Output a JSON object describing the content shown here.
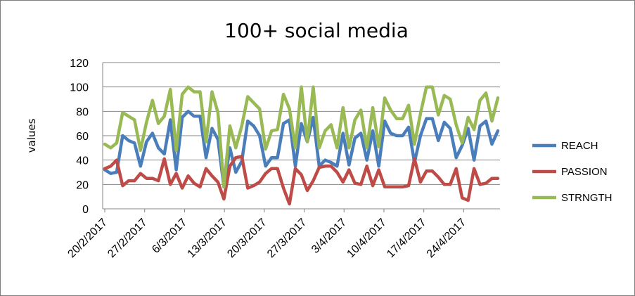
{
  "chart_data": {
    "type": "line",
    "title": "100+ social media",
    "ylabel": "values",
    "xlabel": "",
    "ylim": [
      0,
      120
    ],
    "yticks": [
      0,
      20,
      40,
      60,
      80,
      100,
      120
    ],
    "grid": "horizontal",
    "legend_position": "right",
    "x_tick_labels": [
      "20/2/2017",
      "27/2/2017",
      "6/3/2017",
      "13/3/2017",
      "20/3/2017",
      "27/3/2017",
      "3/4/2017",
      "10/4/2017",
      "17/4/2017",
      "24/4/2017"
    ],
    "x_start": "20/2/2017",
    "x_end": "30/4/2017",
    "series": [
      {
        "name": "REACH",
        "color": "#4a7ebb",
        "values": [
          32,
          29,
          30,
          60,
          56,
          54,
          35,
          55,
          62,
          50,
          45,
          73,
          32,
          75,
          80,
          76,
          76,
          42,
          66,
          57,
          18,
          50,
          30,
          39,
          72,
          68,
          60,
          35,
          42,
          42,
          70,
          73,
          35,
          70,
          55,
          75,
          35,
          40,
          38,
          35,
          62,
          36,
          58,
          62,
          40,
          64,
          35,
          72,
          62,
          60,
          60,
          67,
          38,
          60,
          74,
          74,
          56,
          71,
          66,
          42,
          52,
          66,
          40,
          68,
          72,
          53,
          64
        ]
      },
      {
        "name": "PASSION",
        "color": "#be4b48",
        "values": [
          33,
          35,
          40,
          19,
          23,
          23,
          29,
          25,
          25,
          23,
          41,
          20,
          29,
          17,
          27,
          21,
          18,
          33,
          27,
          22,
          8,
          35,
          42,
          43,
          17,
          19,
          22,
          29,
          33,
          33,
          17,
          4,
          33,
          28,
          15,
          23,
          34,
          35,
          35,
          30,
          22,
          32,
          21,
          20,
          35,
          19,
          32,
          18,
          18,
          18,
          18,
          19,
          41,
          22,
          31,
          31,
          26,
          20,
          20,
          33,
          9,
          7,
          33,
          20,
          21,
          25,
          25
        ]
      },
      {
        "name": "STRNGTH",
        "color": "#98b954",
        "values": [
          53,
          50,
          54,
          79,
          76,
          73,
          48,
          71,
          89,
          70,
          76,
          98,
          48,
          94,
          100,
          96,
          96,
          55,
          96,
          79,
          18,
          68,
          50,
          68,
          92,
          87,
          82,
          49,
          64,
          65,
          94,
          82,
          50,
          100,
          55,
          100,
          50,
          64,
          69,
          50,
          83,
          50,
          73,
          81,
          50,
          83,
          51,
          91,
          81,
          74,
          74,
          85,
          53,
          78,
          100,
          100,
          77,
          93,
          90,
          69,
          54,
          75,
          65,
          89,
          95,
          72,
          91
        ]
      }
    ]
  }
}
